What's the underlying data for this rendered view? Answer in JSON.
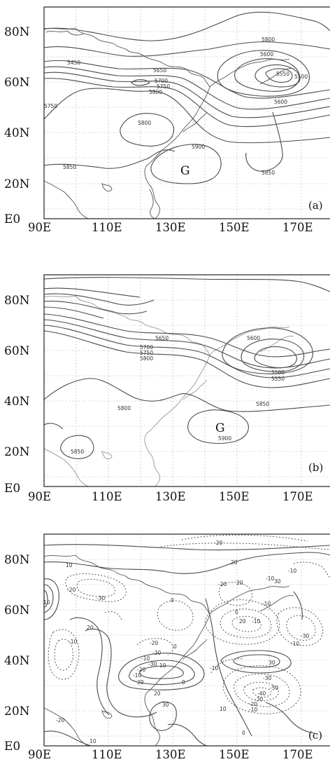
{
  "panels": [
    {
      "id": "a",
      "panel_label": "(a)",
      "center_label": "G",
      "contour_labels": [
        "5450",
        "5650",
        "5700",
        "5750",
        "5800",
        "5600",
        "5800",
        "5550",
        "5500",
        "5600",
        "5750",
        "5800",
        "5850",
        "5900",
        "5850"
      ],
      "y_ticks": [
        "80N",
        "60N",
        "40N",
        "20N",
        "E0"
      ],
      "x_ticks": [
        "90E",
        "110E",
        "130E",
        "150E",
        "170E"
      ]
    },
    {
      "id": "b",
      "panel_label": "(b)",
      "center_label": "G",
      "contour_labels": [
        "5650",
        "5700",
        "5750",
        "5800",
        "5600",
        "5500",
        "5550",
        "5800",
        "5850",
        "5900",
        "5850"
      ],
      "y_ticks": [
        "80N",
        "60N",
        "40N",
        "20N",
        "E0"
      ],
      "x_ticks": [
        "90E",
        "110E",
        "130E",
        "150E",
        "170E"
      ]
    },
    {
      "id": "c",
      "panel_label": "(c)",
      "contour_labels": [
        "-20",
        "10",
        "-10",
        "20",
        "-20",
        "-30",
        "-10",
        "30",
        "-10",
        "20",
        "0",
        "20",
        "-20",
        "-10",
        "0",
        "-30",
        "-10",
        "20",
        "-10",
        "0",
        "-30",
        "-10",
        "10",
        "10",
        "30",
        "-50",
        "-40",
        "-30",
        "-20",
        "-10",
        "-20",
        "30",
        "20",
        "-20",
        "10",
        "0",
        "10",
        "-30",
        "-20",
        "-10",
        "0",
        "20",
        "-30",
        "-10"
      ],
      "y_ticks": [
        "80N",
        "60N",
        "40N",
        "20N",
        "E0"
      ],
      "x_ticks": [
        "90E",
        "110E",
        "130E",
        "150E",
        "170E"
      ]
    }
  ]
}
